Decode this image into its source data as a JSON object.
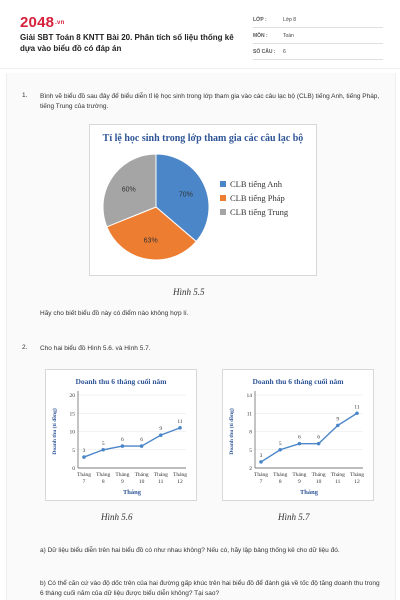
{
  "site": {
    "logo": "2048",
    "logo_suffix": ".vn"
  },
  "doc": {
    "title": "Giải SBT Toán 8 KNTT Bài 20. Phân tích số liệu thống kê dựa vào biểu đồ có đáp án"
  },
  "meta": [
    {
      "key": "LỚP :",
      "value": "Lớp 8"
    },
    {
      "key": "MÔN :",
      "value": "Toán"
    },
    {
      "key": "SỐ CÂU :",
      "value": "6"
    }
  ],
  "q1": {
    "number": "1.",
    "text": "Bình vẽ biểu đồ sau đây để biểu diễn tỉ lệ học sinh trong lớp tham gia vào các câu lạc bộ (CLB) tiếng Anh, tiếng Pháp, tiếng Trung của trường.",
    "caption": "Hình 5.5",
    "followup": "Hãy cho biết biểu đồ này có điểm nào không hợp lí."
  },
  "q2": {
    "number": "2.",
    "text": "Cho hai biểu đồ Hình 5.6. và Hình 5.7.",
    "caption_a": "Hình 5.6",
    "caption_b": "Hình 5.7",
    "part_a": "a) Dữ liệu biểu diễn trên hai biểu đồ có như nhau không? Nếu có, hãy lập bảng thống kê cho dữ liệu đó.",
    "part_b": "b) Có thể căn cứ vào độ dốc trên của hai đường gấp khúc trên hai biểu đồ để đánh giá về tốc độ tăng doanh thu trong 6 tháng cuối năm của dữ liệu được biểu diễn không? Tại sao?"
  },
  "chart_data": [
    {
      "type": "pie",
      "title": "Tỉ lệ học sinh trong lớp tham gia các câu lạc bộ",
      "categories": [
        "CLB tiếng Anh",
        "CLB tiếng Pháp",
        "CLB tiếng Trung"
      ],
      "values": [
        70,
        63,
        60
      ],
      "labels": [
        "70%",
        "63%",
        "60%"
      ],
      "colors": [
        "#4a86c8",
        "#ed7d31",
        "#a5a5a5"
      ],
      "legend": "right"
    },
    {
      "type": "line",
      "title": "Doanh thu 6 tháng cuối năm",
      "xlabel": "Tháng",
      "ylabel": "Doanh thu (tỉ đồng)",
      "categories": [
        "Tháng 7",
        "Tháng 8",
        "Tháng 9",
        "Tháng 10",
        "Tháng 11",
        "Tháng 12"
      ],
      "values": [
        3,
        5,
        6,
        6,
        9,
        11
      ],
      "ylim": [
        0,
        20
      ],
      "yticks": [
        0,
        5,
        10,
        15,
        20
      ],
      "color": "#4a86c8"
    },
    {
      "type": "line",
      "title": "Doanh thu 6 tháng cuối năm",
      "xlabel": "Tháng",
      "ylabel": "Doanh thu (tỉ đồng)",
      "categories": [
        "Tháng 7",
        "Tháng 8",
        "Tháng 9",
        "Tháng 10",
        "Tháng 11",
        "Tháng 12"
      ],
      "values": [
        3,
        5,
        6,
        6,
        9,
        11
      ],
      "ylim": [
        2,
        14
      ],
      "yticks": [
        2,
        5,
        8,
        11,
        14
      ],
      "color": "#4a86c8"
    }
  ]
}
